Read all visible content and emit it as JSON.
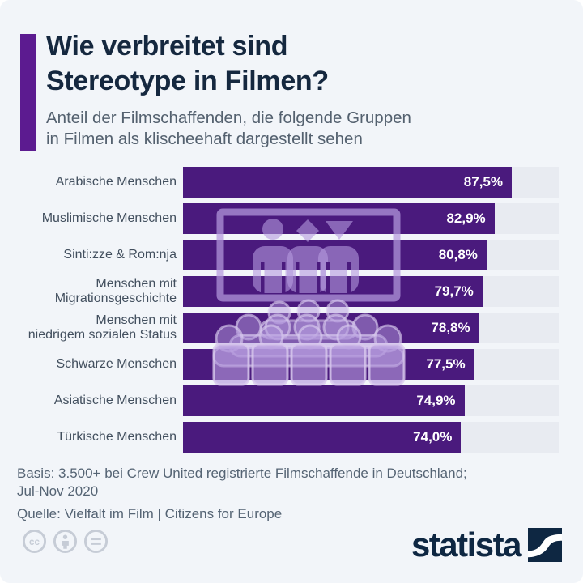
{
  "header": {
    "title_line1": "Wie verbreitet sind",
    "title_line2": "Stereotype in Filmen?",
    "subtitle_line1": "Anteil der Filmschaffenden, die folgende Gruppen",
    "subtitle_line2": "in Filmen als klischeehaft dargestellt sehen"
  },
  "chart_data": {
    "type": "bar",
    "orientation": "horizontal",
    "title": "Wie verbreitet sind Stereotype in Filmen?",
    "subtitle": "Anteil der Filmschaffenden, die folgende Gruppen in Filmen als klischeehaft dargestellt sehen",
    "categories": [
      "Arabische Menschen",
      "Muslimische Menschen",
      "Sinti:zze & Rom:nja",
      "Menschen mit\nMigrationsgeschichte",
      "Menschen mit\nniedrigem sozialen Status",
      "Schwarze Menschen",
      "Asiatische Menschen",
      "Türkische Menschen"
    ],
    "values": [
      87.5,
      82.9,
      80.8,
      79.7,
      78.8,
      77.5,
      74.9,
      74.0
    ],
    "value_labels": [
      "87,5%",
      "82,9%",
      "80,8%",
      "79,7%",
      "78,8%",
      "77,5%",
      "74,9%",
      "74,0%"
    ],
    "unit": "%",
    "xlim": [
      0,
      100
    ],
    "grid": false,
    "legend": false,
    "watermark_icon": "cinema-screen-audience-icon"
  },
  "footer": {
    "basis_line1": "Basis: 3.500+ bei Crew United registrierte Filmschaffende in Deutschland;",
    "basis_line2": "Jul-Nov 2020",
    "source": "Quelle: Vielfalt im Film | Citizens for Europe"
  },
  "branding": {
    "logo_text": "statista",
    "license_icons": [
      "cc-icon",
      "attribution-person-icon",
      "equals-icon"
    ]
  },
  "colors": {
    "page_bg": "#f2f5f9",
    "accent_bar": "#5c1b90",
    "bar": "#4a1a7d",
    "track": "#e8ebf1",
    "title": "#15283f",
    "subtitle": "#54616f",
    "category_label": "#424f5e",
    "value_label": "#ffffff",
    "footer_text": "#556474",
    "logo_navy": "#0e2742",
    "watermark": "#b49add",
    "watermark_outline": "#d9cbee",
    "license_gray": "#c6ccd6"
  }
}
